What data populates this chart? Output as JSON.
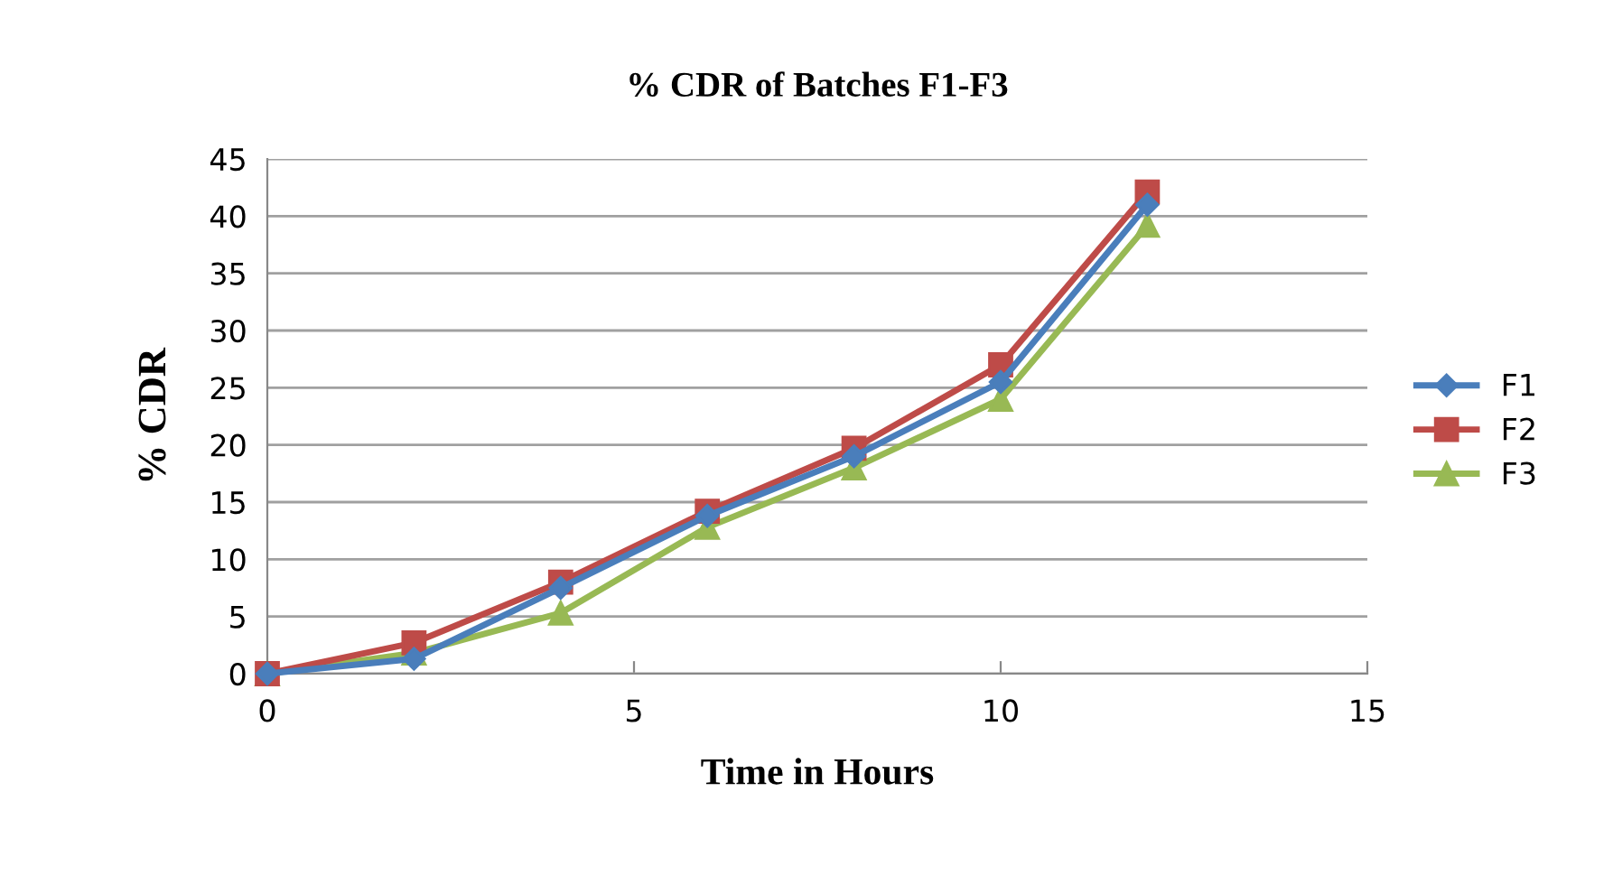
{
  "chart_data": {
    "type": "line",
    "title": "% CDR of Batches F1-F3",
    "xlabel": "Time in Hours",
    "ylabel": "% CDR",
    "x": [
      0,
      2,
      4,
      6,
      8,
      10,
      12
    ],
    "series": [
      {
        "name": "F1",
        "color": "#4a7ebb",
        "marker": "diamond",
        "values": [
          0,
          1.3,
          7.5,
          13.8,
          19,
          25.5,
          41
        ]
      },
      {
        "name": "F2",
        "color": "#be4b48",
        "marker": "square",
        "values": [
          0,
          2.7,
          8,
          14.2,
          19.7,
          27,
          42.1
        ]
      },
      {
        "name": "F3",
        "color": "#98b954",
        "marker": "triangle",
        "values": [
          0,
          1.8,
          5.3,
          12.8,
          18,
          24,
          39.2
        ]
      }
    ],
    "xlim": [
      0,
      15
    ],
    "xticks": [
      0,
      5,
      10,
      15
    ],
    "ylim": [
      0,
      45
    ],
    "yticks": [
      0,
      5,
      10,
      15,
      20,
      25,
      30,
      35,
      40,
      45
    ],
    "grid": "y",
    "legend": "right",
    "line_style": "solid"
  }
}
